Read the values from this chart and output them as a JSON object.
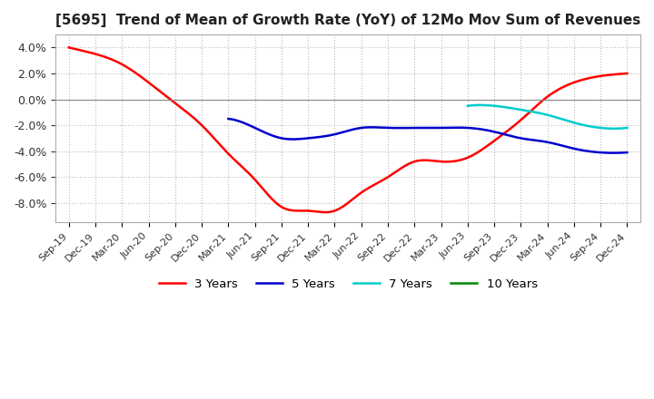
{
  "title": "[5695]  Trend of Mean of Growth Rate (YoY) of 12Mo Mov Sum of Revenues",
  "title_fontsize": 11,
  "ylim": [
    -0.095,
    0.05
  ],
  "yticks": [
    0.04,
    0.02,
    0.0,
    -0.02,
    -0.04,
    -0.06,
    -0.08
  ],
  "legend_labels": [
    "3 Years",
    "5 Years",
    "7 Years",
    "10 Years"
  ],
  "legend_colors": [
    "#ff0000",
    "#0000cc",
    "#00cccc",
    "#008800"
  ],
  "background_color": "#ffffff",
  "grid_color": "#bbbbbb",
  "series_3y": {
    "x": [
      0,
      1,
      2,
      3,
      4,
      5,
      6,
      7,
      8,
      9,
      10,
      11,
      12,
      13,
      14,
      15,
      16,
      17,
      18,
      19,
      20,
      21
    ],
    "y": [
      0.04,
      0.035,
      0.027,
      0.013,
      -0.003,
      -0.02,
      -0.042,
      -0.062,
      -0.083,
      -0.086,
      -0.086,
      -0.072,
      -0.06,
      -0.048,
      -0.048,
      -0.045,
      -0.032,
      -0.016,
      0.002,
      0.013,
      0.018,
      0.02
    ]
  },
  "series_5y": {
    "x": [
      6,
      7,
      8,
      9,
      10,
      11,
      12,
      13,
      14,
      15,
      16,
      17,
      18,
      19,
      20,
      21
    ],
    "y": [
      -0.015,
      -0.022,
      -0.03,
      -0.03,
      -0.027,
      -0.022,
      -0.022,
      -0.022,
      -0.022,
      -0.022,
      -0.025,
      -0.03,
      -0.033,
      -0.038,
      -0.041,
      -0.041
    ]
  },
  "series_7y": {
    "x": [
      15,
      16,
      17,
      18,
      19,
      20,
      21
    ],
    "y": [
      -0.005,
      -0.005,
      -0.008,
      -0.012,
      -0.018,
      -0.022,
      -0.022
    ]
  },
  "series_10y": {
    "x": [],
    "y": []
  },
  "x_labels": [
    "Sep-19",
    "Dec-19",
    "Mar-20",
    "Jun-20",
    "Sep-20",
    "Dec-20",
    "Mar-21",
    "Jun-21",
    "Sep-21",
    "Dec-21",
    "Mar-22",
    "Jun-22",
    "Sep-22",
    "Dec-22",
    "Mar-23",
    "Jun-23",
    "Sep-23",
    "Dec-23",
    "Mar-24",
    "Jun-24",
    "Sep-24",
    "Dec-24"
  ]
}
